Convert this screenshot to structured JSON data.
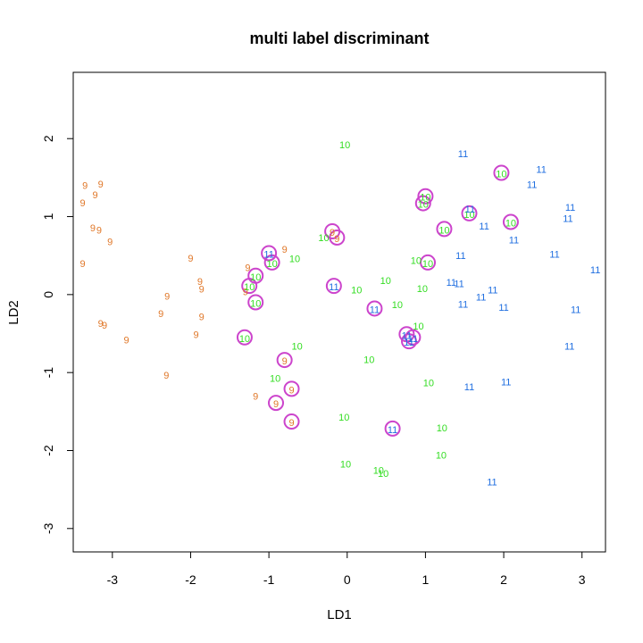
{
  "chart_data": {
    "type": "scatter",
    "title": "multi label discriminant",
    "xlabel": "LD1",
    "ylabel": "LD2",
    "xlim": [
      -3.5,
      3.3
    ],
    "ylim": [
      -3.3,
      2.85
    ],
    "xticks": [
      -3,
      -2,
      -1,
      0,
      1,
      2,
      3
    ],
    "yticks": [
      -3,
      -2,
      -1,
      0,
      1,
      2
    ],
    "grid": false,
    "legend": "none",
    "colors": {
      "9": "#e0782a",
      "10": "#33dd22",
      "11": "#1f6ee0",
      "highlight": "#cc44cc"
    },
    "series": [
      {
        "label": "9",
        "points": [
          [
            -3.35,
            1.4
          ],
          [
            -3.15,
            1.42
          ],
          [
            -3.22,
            1.28
          ],
          [
            -3.38,
            1.18
          ],
          [
            -3.25,
            0.86
          ],
          [
            -3.17,
            0.83
          ],
          [
            -3.03,
            0.68
          ],
          [
            -3.38,
            0.4
          ],
          [
            -2.0,
            0.47
          ],
          [
            -1.88,
            0.17
          ],
          [
            -1.86,
            0.07
          ],
          [
            -2.3,
            -0.02
          ],
          [
            -2.38,
            -0.24
          ],
          [
            -1.86,
            -0.28
          ],
          [
            -3.15,
            -0.37
          ],
          [
            -3.1,
            -0.39
          ],
          [
            -2.82,
            -0.58
          ],
          [
            -1.93,
            -0.51
          ],
          [
            -2.31,
            -1.03
          ],
          [
            -1.27,
            0.35
          ],
          [
            -1.3,
            0.04
          ],
          [
            -0.8,
            0.58
          ],
          [
            -1.17,
            -1.3
          ],
          [
            -0.19,
            0.8
          ],
          [
            -0.13,
            0.72
          ],
          [
            -0.8,
            -0.85
          ],
          [
            -0.71,
            -1.22
          ],
          [
            -0.91,
            -1.4
          ],
          [
            -0.71,
            -1.64
          ]
        ]
      },
      {
        "label": "10",
        "points": [
          [
            -0.03,
            1.92
          ],
          [
            1.0,
            1.25
          ],
          [
            0.97,
            1.16
          ],
          [
            1.97,
            1.55
          ],
          [
            2.09,
            0.92
          ],
          [
            1.24,
            0.83
          ],
          [
            1.56,
            1.03
          ],
          [
            -0.3,
            0.73
          ],
          [
            -0.67,
            0.46
          ],
          [
            -0.96,
            0.4
          ],
          [
            0.88,
            0.44
          ],
          [
            1.03,
            0.4
          ],
          [
            -1.17,
            0.23
          ],
          [
            -1.25,
            0.1
          ],
          [
            0.49,
            0.18
          ],
          [
            0.12,
            0.06
          ],
          [
            0.96,
            0.08
          ],
          [
            -1.17,
            -0.11
          ],
          [
            0.64,
            -0.13
          ],
          [
            0.91,
            -0.4
          ],
          [
            -0.64,
            -0.66
          ],
          [
            0.28,
            -0.83
          ],
          [
            -0.92,
            -1.07
          ],
          [
            1.04,
            -1.13
          ],
          [
            -1.31,
            -0.56
          ],
          [
            -0.04,
            -1.57
          ],
          [
            1.21,
            -1.71
          ],
          [
            -0.02,
            -2.17
          ],
          [
            1.2,
            -2.06
          ],
          [
            0.4,
            -2.25
          ],
          [
            0.46,
            -2.29
          ]
        ]
      },
      {
        "label": "11",
        "points": [
          [
            1.48,
            1.81
          ],
          [
            2.48,
            1.61
          ],
          [
            2.36,
            1.41
          ],
          [
            1.57,
            1.1
          ],
          [
            1.75,
            0.88
          ],
          [
            2.85,
            1.12
          ],
          [
            2.82,
            0.98
          ],
          [
            2.13,
            0.7
          ],
          [
            2.65,
            0.52
          ],
          [
            1.45,
            0.5
          ],
          [
            3.17,
            0.32
          ],
          [
            -1.0,
            0.52
          ],
          [
            1.33,
            0.16
          ],
          [
            1.43,
            0.14
          ],
          [
            1.86,
            0.06
          ],
          [
            1.71,
            -0.03
          ],
          [
            -0.17,
            0.1
          ],
          [
            1.48,
            -0.12
          ],
          [
            2.0,
            -0.16
          ],
          [
            0.35,
            -0.19
          ],
          [
            2.92,
            -0.19
          ],
          [
            0.76,
            -0.52
          ],
          [
            0.84,
            -0.56
          ],
          [
            0.79,
            -0.61
          ],
          [
            2.84,
            -0.66
          ],
          [
            1.56,
            -1.18
          ],
          [
            2.03,
            -1.12
          ],
          [
            0.58,
            -1.73
          ],
          [
            1.85,
            -2.4
          ]
        ]
      }
    ],
    "highlighted": [
      [
        -1.0,
        0.52
      ],
      [
        -0.96,
        0.4
      ],
      [
        -1.17,
        0.23
      ],
      [
        -1.25,
        0.1
      ],
      [
        -1.17,
        -0.11
      ],
      [
        -1.31,
        -0.56
      ],
      [
        -0.8,
        -0.85
      ],
      [
        -0.71,
        -1.22
      ],
      [
        -0.91,
        -1.4
      ],
      [
        -0.71,
        -1.64
      ],
      [
        -0.19,
        0.8
      ],
      [
        -0.13,
        0.72
      ],
      [
        -0.17,
        0.1
      ],
      [
        0.35,
        -0.19
      ],
      [
        0.76,
        -0.52
      ],
      [
        0.84,
        -0.56
      ],
      [
        0.79,
        -0.61
      ],
      [
        0.58,
        -1.73
      ],
      [
        1.0,
        1.25
      ],
      [
        0.97,
        1.16
      ],
      [
        1.97,
        1.55
      ],
      [
        1.56,
        1.03
      ],
      [
        2.09,
        0.92
      ],
      [
        1.24,
        0.83
      ],
      [
        1.03,
        0.4
      ]
    ]
  }
}
